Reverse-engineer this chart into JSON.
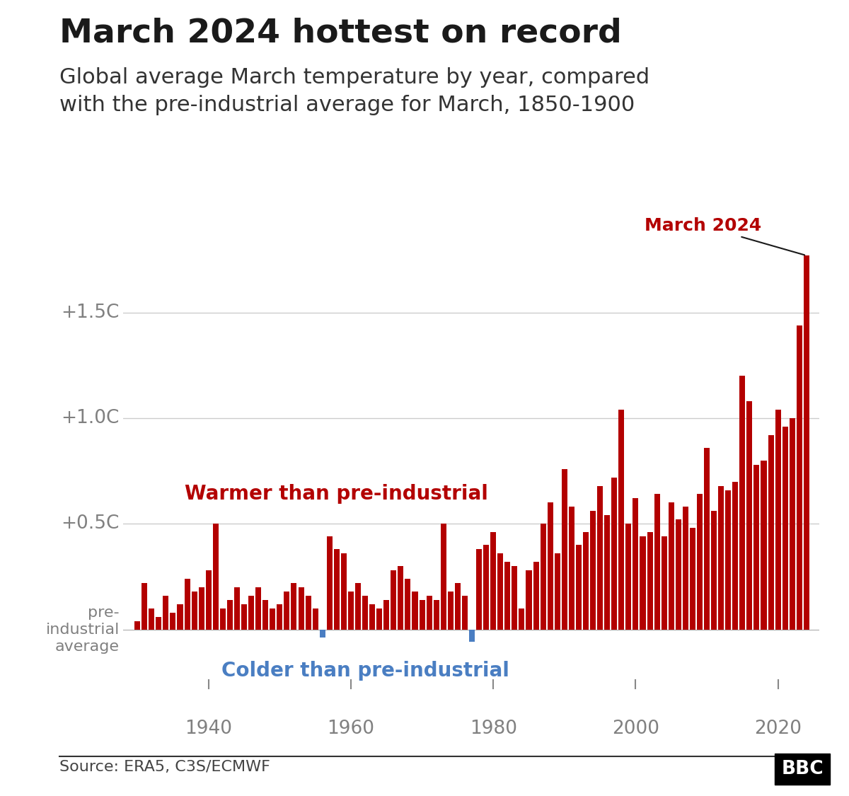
{
  "title": "March 2024 hottest on record",
  "subtitle": "Global average March temperature by year, compared\nwith the pre-industrial average for March, 1850-1900",
  "source_text": "Source: ERA5, C3S/ECMWF",
  "years": [
    1930,
    1931,
    1932,
    1933,
    1934,
    1935,
    1936,
    1937,
    1938,
    1939,
    1940,
    1941,
    1942,
    1943,
    1944,
    1945,
    1946,
    1947,
    1948,
    1949,
    1950,
    1951,
    1952,
    1953,
    1954,
    1955,
    1956,
    1957,
    1958,
    1959,
    1960,
    1961,
    1962,
    1963,
    1964,
    1965,
    1966,
    1967,
    1968,
    1969,
    1970,
    1971,
    1972,
    1973,
    1974,
    1975,
    1976,
    1977,
    1978,
    1979,
    1980,
    1981,
    1982,
    1983,
    1984,
    1985,
    1986,
    1987,
    1988,
    1989,
    1990,
    1991,
    1992,
    1993,
    1994,
    1995,
    1996,
    1997,
    1998,
    1999,
    2000,
    2001,
    2002,
    2003,
    2004,
    2005,
    2006,
    2007,
    2008,
    2009,
    2010,
    2011,
    2012,
    2013,
    2014,
    2015,
    2016,
    2017,
    2018,
    2019,
    2020,
    2021,
    2022,
    2023,
    2024
  ],
  "values": [
    0.04,
    0.22,
    0.1,
    0.06,
    0.16,
    0.08,
    0.12,
    0.24,
    0.18,
    0.2,
    0.28,
    0.5,
    0.1,
    0.14,
    0.2,
    0.12,
    0.16,
    0.2,
    0.14,
    0.1,
    0.12,
    0.18,
    0.22,
    0.2,
    0.16,
    0.1,
    -0.04,
    0.44,
    0.38,
    0.36,
    0.18,
    0.22,
    0.16,
    0.12,
    0.1,
    0.14,
    0.28,
    0.3,
    0.24,
    0.18,
    0.14,
    0.16,
    0.14,
    0.5,
    0.18,
    0.22,
    0.16,
    -0.06,
    0.38,
    0.4,
    0.46,
    0.36,
    0.32,
    0.3,
    0.1,
    0.28,
    0.32,
    0.5,
    0.6,
    0.36,
    0.76,
    0.58,
    0.4,
    0.46,
    0.56,
    0.68,
    0.54,
    0.72,
    1.04,
    0.5,
    0.62,
    0.44,
    0.46,
    0.64,
    0.44,
    0.6,
    0.52,
    0.58,
    0.48,
    0.64,
    0.86,
    0.56,
    0.68,
    0.66,
    0.7,
    1.2,
    1.08,
    0.78,
    0.8,
    0.92,
    1.04,
    0.96,
    1.0,
    1.44,
    1.77
  ],
  "bar_color_warm": "#b30000",
  "bar_color_cold": "#4a7ec2",
  "title_color": "#1a1a1a",
  "subtitle_color": "#333333",
  "warm_annotation": "Warmer than pre-industrial",
  "cold_annotation": "Colder than pre-industrial",
  "march2024_label": "March 2024",
  "annotation_warm_color": "#b30000",
  "annotation_cold_color": "#4a7ec2",
  "axis_tick_color": "#808080",
  "ytick_positions": [
    0.0,
    0.5,
    1.0,
    1.5
  ],
  "ytick_labels": [
    "pre-\nindustrial\naverage",
    "+0.5C",
    "+1.0C",
    "+1.5C"
  ],
  "xticks": [
    1940,
    1960,
    1980,
    2000,
    2020
  ],
  "ylim_low": -0.28,
  "ylim_high": 2.0,
  "grid_color": "#cccccc",
  "background_color": "#ffffff"
}
